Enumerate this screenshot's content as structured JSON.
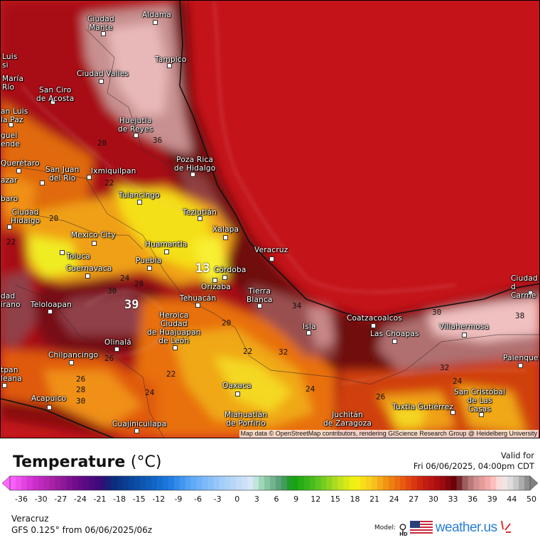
{
  "map": {
    "cities": [
      "Ciudad\nMante",
      "Aldama",
      "Tampico",
      "Luis\nsi",
      "María\nRío",
      "Ciudad Valles",
      "San Ciro\nde Acosta",
      "an Luis\nla Paz",
      "guel\nende",
      "Huejutla\nde Reyes",
      "Querétaro",
      "San Juan\ndel Rio",
      "Ixmiquilpan",
      "Poza Rica\nde Hidalgo",
      "azar",
      "baro",
      "Tulancingo",
      "Ciudad\nHidalgo",
      "Teziutlán",
      "Mexico City",
      "Xalapa",
      "Huamantla",
      "Toluca",
      "Veracruz",
      "Puebla",
      "Cuernavaca",
      "Córdoba",
      "Orizaba",
      "Tierra\nBlanca",
      "Tehuacán",
      "dad\nirano",
      "Teloloapan",
      "Heroica\nCiudad\nde Huajuapan\nde León",
      "Coatzacoalcos",
      "Isla",
      "Villahermosa",
      "Las Choapas",
      "Ciudad d\nCarme",
      "Olinalá",
      "Chilpancingo",
      "Palenque",
      "tpan\nleana",
      "Oaxaca",
      "San Cristóbal\nde Las\nCasas",
      "Acapulco",
      "Tuxtla Gutiérrez",
      "Miahuatlán\nde Porfirio",
      "Juchitán\nde Zaragoza",
      "Cuajinicuilapa"
    ],
    "contour_labels": [
      "36",
      "28",
      "22",
      "22",
      "24",
      "28",
      "39",
      "13",
      "30",
      "20",
      "22",
      "22",
      "24",
      "26",
      "26",
      "28",
      "30",
      "24",
      "34",
      "32",
      "30",
      "38",
      "32",
      "24",
      "26",
      "20"
    ],
    "attribution": "Map data © OpenStreetMap contributors, rendering GIScience Research Group @ Heidelberg University"
  },
  "footer": {
    "title": "Temperature",
    "unit": "(°C)",
    "valid_label": "Valid for",
    "valid_time": "Fri 06/06/2025, 04:00pm CDT",
    "location": "Veracruz",
    "model_run": "GFS 0.125° from  06/06/2025/06z",
    "model_label": "Model:",
    "hd_label": "HD",
    "brand": "weather.us"
  },
  "legend": {
    "ticks": [
      "-36",
      "-30",
      "-27",
      "-24",
      "-21",
      "-18",
      "-15",
      "-12",
      "-9",
      "-6",
      "-3",
      "0",
      "3",
      "6",
      "9",
      "12",
      "15",
      "18",
      "21",
      "24",
      "27",
      "30",
      "33",
      "36",
      "39",
      "44",
      "50"
    ],
    "stops": [
      [
        "#ff66ff",
        0
      ],
      [
        "#d030d0",
        4
      ],
      [
        "#a020a0",
        8
      ],
      [
        "#6a0a8a",
        12
      ],
      [
        "#3a0a78",
        16
      ],
      [
        "#0a2a78",
        18
      ],
      [
        "#0a4aa0",
        22
      ],
      [
        "#1a78e0",
        28
      ],
      [
        "#5aa8f8",
        32
      ],
      [
        "#a8d0f8",
        38
      ],
      [
        "#dce8f8",
        43
      ],
      [
        "#a8e0c0",
        44
      ],
      [
        "#509a70",
        48
      ],
      [
        "#10a010",
        50
      ],
      [
        "#50c020",
        54
      ],
      [
        "#b8e020",
        58
      ],
      [
        "#f4f410",
        61
      ],
      [
        "#f8c820",
        64
      ],
      [
        "#f08a10",
        67
      ],
      [
        "#e85010",
        70
      ],
      [
        "#c82010",
        73
      ],
      [
        "#a80c10",
        76
      ],
      [
        "#600008",
        79
      ],
      [
        "#905050",
        80
      ],
      [
        "#c88888",
        82
      ],
      [
        "#ffb0b0",
        85
      ],
      [
        "#f8e8e8",
        87
      ],
      [
        "#d8d8d8",
        89
      ],
      [
        "#808080",
        92
      ]
    ]
  }
}
